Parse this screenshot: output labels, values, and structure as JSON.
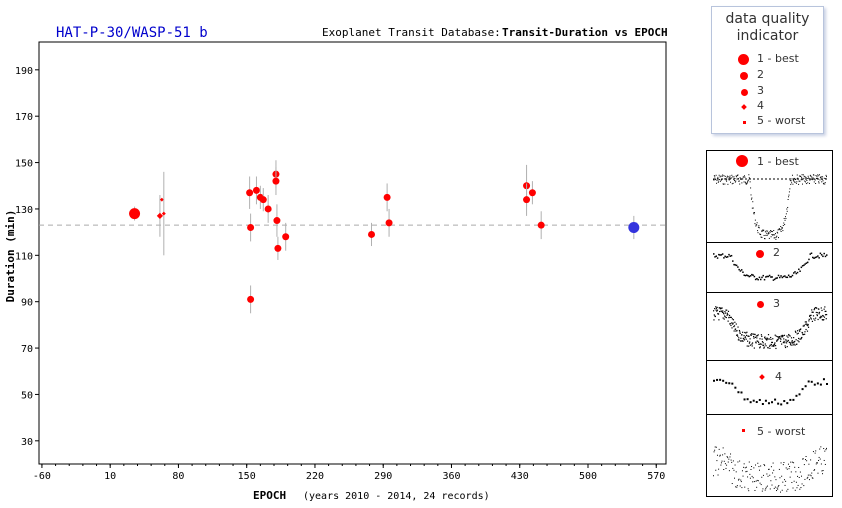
{
  "chart_data": {
    "type": "scatter",
    "title": "HAT-P-30/WASP-51 b",
    "subtitle_prefix": "Exoplanet Transit Database:",
    "subtitle_main": "Transit-Duration vs EPOCH",
    "xlabel": "EPOCH",
    "xlabel_note": "(years 2010 - 2014, 24 records)",
    "ylabel": "Duration (min)",
    "xlim": [
      -63,
      580
    ],
    "ylim": [
      20,
      202
    ],
    "xticks": [
      -60,
      10,
      80,
      150,
      220,
      290,
      360,
      430,
      500,
      570
    ],
    "yticks": [
      30,
      50,
      70,
      90,
      110,
      130,
      150,
      170,
      190
    ],
    "reference_line": 123,
    "grid": false,
    "series": [
      {
        "color": "#ff0000",
        "points": [
          {
            "x": 35,
            "y": 128,
            "err": 3,
            "q": 1
          },
          {
            "x": 61,
            "y": 127,
            "err": 9,
            "q": 4
          },
          {
            "x": 63,
            "y": 134,
            "err": 0,
            "q": 5
          },
          {
            "x": 65,
            "y": 128,
            "err": 18,
            "q": 5
          },
          {
            "x": 153,
            "y": 137,
            "err": 7,
            "q": 3
          },
          {
            "x": 154,
            "y": 122,
            "err": 6,
            "q": 3
          },
          {
            "x": 154,
            "y": 91,
            "err": 6,
            "q": 3
          },
          {
            "x": 160,
            "y": 138,
            "err": 6,
            "q": 3
          },
          {
            "x": 164,
            "y": 135,
            "err": 5,
            "q": 3
          },
          {
            "x": 167,
            "y": 134,
            "err": 5,
            "q": 3
          },
          {
            "x": 172,
            "y": 130,
            "err": 6,
            "q": 3
          },
          {
            "x": 180,
            "y": 145,
            "err": 6,
            "q": 3
          },
          {
            "x": 180,
            "y": 142,
            "err": 6,
            "q": 3
          },
          {
            "x": 181,
            "y": 125,
            "err": 7,
            "q": 3
          },
          {
            "x": 182,
            "y": 113,
            "err": 5,
            "q": 3
          },
          {
            "x": 190,
            "y": 118,
            "err": 6,
            "q": 3
          },
          {
            "x": 278,
            "y": 119,
            "err": 5,
            "q": 3
          },
          {
            "x": 294,
            "y": 135,
            "err": 6,
            "q": 3
          },
          {
            "x": 296,
            "y": 124,
            "err": 6,
            "q": 3
          },
          {
            "x": 437,
            "y": 140,
            "err": 9,
            "q": 3
          },
          {
            "x": 437,
            "y": 134,
            "err": 7,
            "q": 3
          },
          {
            "x": 443,
            "y": 137,
            "err": 5,
            "q": 3
          },
          {
            "x": 452,
            "y": 123,
            "err": 6,
            "q": 3
          }
        ]
      },
      {
        "color": "#3333dd",
        "points": [
          {
            "x": 547,
            "y": 122,
            "err": 5,
            "q": 1
          }
        ]
      }
    ]
  },
  "legend": {
    "title_line1": "data quality",
    "title_line2": "indicator",
    "items": [
      {
        "label": "1 - best"
      },
      {
        "label": "2"
      },
      {
        "label": "3"
      },
      {
        "label": "4"
      },
      {
        "label": "5 - worst"
      }
    ]
  },
  "examples": [
    {
      "label": "1 - best"
    },
    {
      "label": "2"
    },
    {
      "label": "3"
    },
    {
      "label": "4"
    },
    {
      "label": "5 - worst"
    }
  ],
  "colors": {
    "point": "#ff0000",
    "highlight_point": "#3333dd",
    "title": "#0000cc",
    "errorbar": "#b0b0b0",
    "reference": "#aaaaaa"
  }
}
